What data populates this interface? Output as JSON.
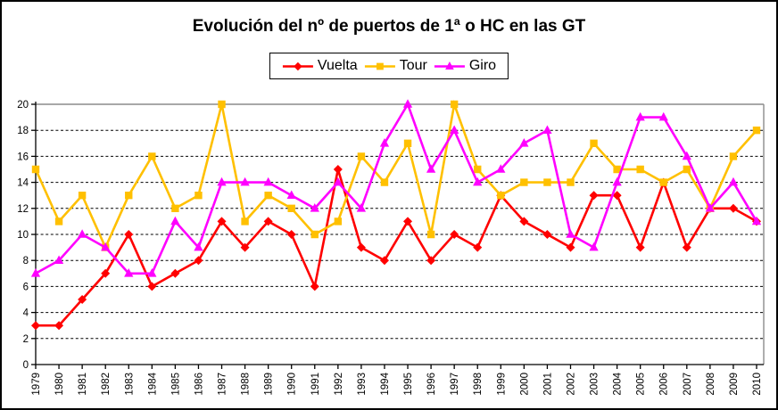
{
  "chart_data": {
    "type": "line",
    "title": "Evolución del nº de puertos de 1ª o HC en las GT",
    "x": [
      1979,
      1980,
      1981,
      1982,
      1983,
      1984,
      1985,
      1986,
      1987,
      1988,
      1989,
      1990,
      1991,
      1992,
      1993,
      1994,
      1995,
      1996,
      1997,
      1998,
      1999,
      2000,
      2001,
      2002,
      2003,
      2004,
      2005,
      2006,
      2007,
      2008,
      2009,
      2010
    ],
    "series": [
      {
        "name": "Vuelta",
        "color": "#FF0000",
        "marker": "diamond",
        "values": [
          3,
          3,
          5,
          7,
          10,
          6,
          7,
          8,
          11,
          9,
          11,
          10,
          6,
          15,
          9,
          8,
          11,
          8,
          10,
          9,
          13,
          11,
          10,
          9,
          13,
          13,
          9,
          14,
          9,
          12,
          12,
          11
        ]
      },
      {
        "name": "Tour",
        "color": "#FFC000",
        "marker": "square",
        "values": [
          15,
          11,
          13,
          9,
          13,
          16,
          12,
          13,
          20,
          11,
          13,
          12,
          10,
          11,
          16,
          14,
          17,
          10,
          20,
          15,
          13,
          14,
          14,
          14,
          17,
          15,
          15,
          14,
          15,
          12,
          16,
          18
        ]
      },
      {
        "name": "Giro",
        "color": "#FF00FF",
        "marker": "triangle",
        "values": [
          7,
          8,
          10,
          9,
          7,
          7,
          11,
          9,
          14,
          14,
          14,
          13,
          12,
          14,
          12,
          17,
          20,
          15,
          18,
          14,
          15,
          17,
          18,
          10,
          9,
          14,
          19,
          19,
          16,
          12,
          14,
          11
        ]
      }
    ],
    "ylim": [
      0,
      20
    ],
    "ytick_step": 2,
    "y_ticks": [
      "0",
      "2",
      "4",
      "6",
      "8",
      "10",
      "12",
      "14",
      "16",
      "18",
      "20"
    ],
    "grid": "horizontal-dashed",
    "legend_position": "top-center",
    "colors": {
      "gridline": "#000000",
      "axis": "#000000",
      "plot_border_gray": "#8C8C8C",
      "background": "#FFFFFF",
      "text": "#000000"
    }
  }
}
